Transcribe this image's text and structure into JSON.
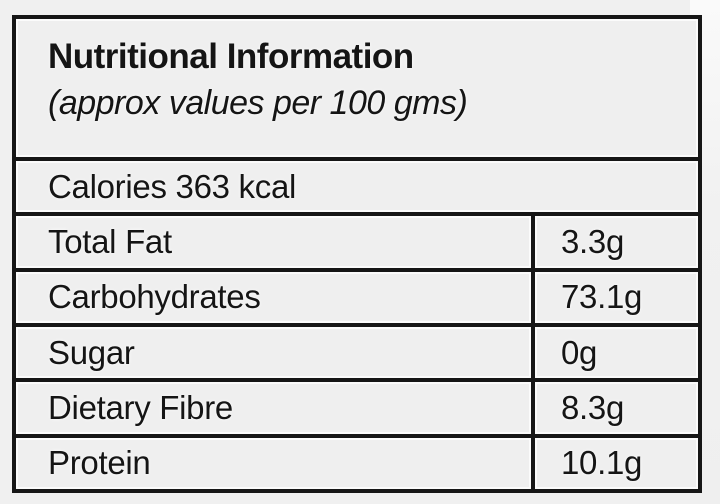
{
  "nutrition_label": {
    "title": "Nutritional Information",
    "subtitle": "(approx values per 100 gms)",
    "calories": "Calories 363 kcal",
    "rows": [
      {
        "name": "Total Fat",
        "value": "3.3g"
      },
      {
        "name": "Carbohydrates",
        "value": "73.1g"
      },
      {
        "name": "Sugar",
        "value": "0g"
      },
      {
        "name": "Dietary Fibre",
        "value": "8.3g"
      },
      {
        "name": "Protein",
        "value": "10.1g"
      }
    ],
    "colors": {
      "background": "#f0f0f0",
      "cell_background": "#efefef",
      "border": "#161616",
      "text": "#151515"
    }
  }
}
